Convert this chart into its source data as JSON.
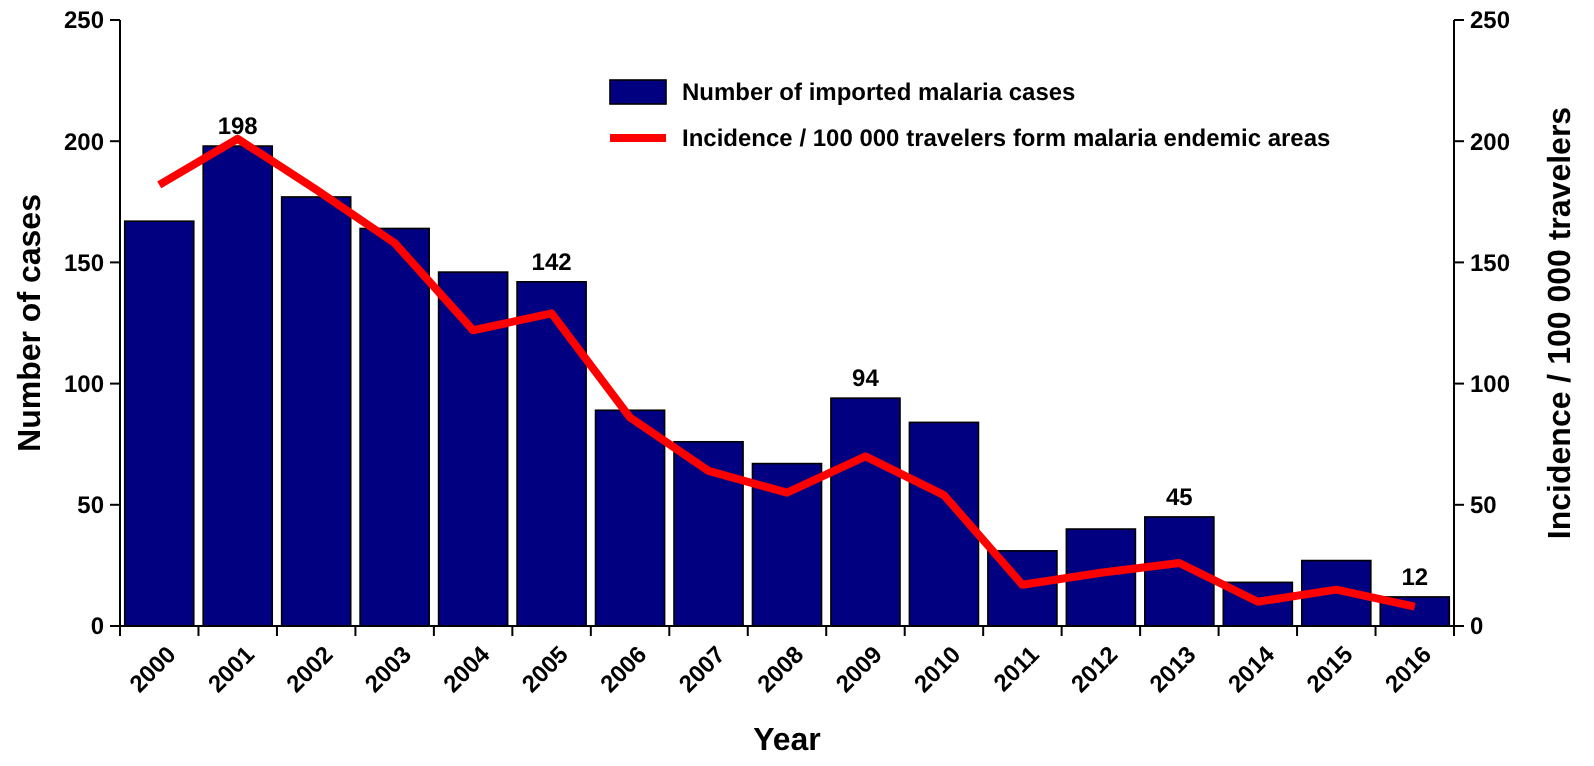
{
  "chart_data": {
    "type": "bar",
    "xlabel": "Year",
    "ylabel": "Number of cases",
    "y2label": "Incidence / 100 000 travelers",
    "categories": [
      "2000",
      "2001",
      "2002",
      "2003",
      "2004",
      "2005",
      "2006",
      "2007",
      "2008",
      "2009",
      "2010",
      "2011",
      "2012",
      "2013",
      "2014",
      "2015",
      "2016"
    ],
    "series": [
      {
        "name": "Number of imported malaria cases",
        "color": "#000080",
        "values": [
          167,
          198,
          177,
          164,
          146,
          142,
          89,
          76,
          67,
          94,
          84,
          31,
          40,
          45,
          18,
          27,
          12
        ],
        "value_labels": [
          null,
          "198",
          null,
          null,
          null,
          "142",
          null,
          null,
          null,
          "94",
          null,
          null,
          null,
          "45",
          null,
          null,
          "12"
        ]
      },
      {
        "name": "Incidence / 100 000 travelers form malaria endemic areas",
        "type": "line",
        "axis": "y2",
        "color": "#ff0000",
        "values": [
          182,
          201,
          180,
          158,
          122,
          129,
          86,
          64,
          55,
          70,
          54,
          17,
          22,
          26,
          10,
          15,
          8
        ]
      }
    ],
    "ylim": [
      0,
      250
    ],
    "yticks": [
      0,
      50,
      100,
      150,
      200,
      250
    ],
    "y2lim": [
      0,
      250
    ],
    "y2ticks": [
      0,
      50,
      100,
      150,
      200,
      250
    ],
    "grid": false,
    "legend": "top right",
    "marker": "none",
    "line_style": "solid"
  }
}
